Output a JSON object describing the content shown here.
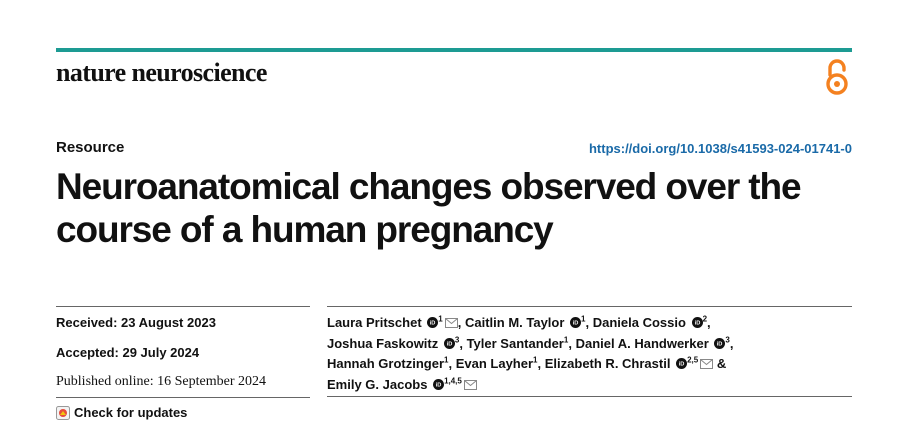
{
  "journal": {
    "name": "nature neuroscience"
  },
  "header": {
    "section": "Resource",
    "doi": "https://doi.org/10.1038/s41593-024-01741-0"
  },
  "article": {
    "title_line1": "Neuroanatomical changes observed over the",
    "title_line2": "course of a human pregnancy"
  },
  "dates": {
    "received": "Received: 23 August 2023",
    "accepted": "Accepted: 29 July 2024",
    "published": "Published online: 16 September 2024"
  },
  "check_updates": {
    "label": "Check for updates"
  },
  "authors": [
    {
      "name": "Laura Pritschet",
      "aff": "1"
    },
    {
      "name": "Caitlin M. Taylor",
      "aff": "1"
    },
    {
      "name": "Daniela Cossio",
      "aff": "2"
    },
    {
      "name": "Joshua Faskowitz",
      "aff": "3"
    },
    {
      "name": "Tyler Santander",
      "aff": "1"
    },
    {
      "name": "Daniel A. Handwerker",
      "aff": "3"
    },
    {
      "name": "Hannah Grotzinger",
      "aff": "1"
    },
    {
      "name": "Evan Layher",
      "aff": "1"
    },
    {
      "name": "Elizabeth R. Chrastil",
      "aff": "2,5"
    },
    {
      "name": "Emily G. Jacobs",
      "aff": "1,4,5"
    }
  ],
  "punct": {
    "comma": ",",
    "amp": "&"
  },
  "colors": {
    "accent_bar": "#1d9b93",
    "link": "#1a6aa8",
    "open_access": "#f48120",
    "orcid": "#111111"
  }
}
